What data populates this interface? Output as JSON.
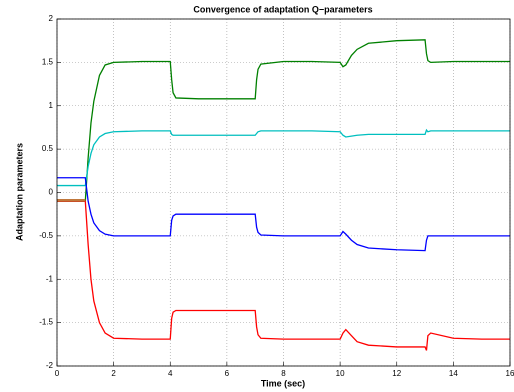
{
  "chart_data": {
    "type": "line",
    "title": "Convergence of adaptation Q−parameters",
    "x_label": "Time (sec)",
    "y_label": "Adaptation parameters",
    "x": [
      0,
      0.9,
      1.0,
      1.1,
      1.2,
      1.3,
      1.5,
      1.7,
      2,
      3,
      4,
      4.05,
      4.1,
      4.2,
      5,
      6,
      7,
      7.05,
      7.1,
      7.2,
      8,
      9,
      10,
      10.1,
      10.2,
      10.4,
      10.6,
      11,
      12,
      13,
      13.05,
      13.1,
      13.2,
      14,
      15,
      16
    ],
    "series": [
      {
        "name": "green",
        "color": "#008000",
        "values": [
          -0.1,
          -0.1,
          -0.1,
          0.4,
          0.8,
          1.05,
          1.35,
          1.47,
          1.5,
          1.51,
          1.51,
          1.3,
          1.15,
          1.09,
          1.08,
          1.08,
          1.08,
          1.3,
          1.42,
          1.48,
          1.51,
          1.51,
          1.5,
          1.45,
          1.47,
          1.58,
          1.65,
          1.72,
          1.75,
          1.76,
          1.6,
          1.52,
          1.5,
          1.51,
          1.51,
          1.51
        ]
      },
      {
        "name": "cyan",
        "color": "#00bfbf",
        "values": [
          0.08,
          0.08,
          0.08,
          0.3,
          0.45,
          0.55,
          0.64,
          0.68,
          0.7,
          0.71,
          0.71,
          0.67,
          0.66,
          0.66,
          0.66,
          0.66,
          0.66,
          0.68,
          0.7,
          0.71,
          0.71,
          0.71,
          0.7,
          0.66,
          0.64,
          0.65,
          0.66,
          0.67,
          0.67,
          0.67,
          0.72,
          0.7,
          0.71,
          0.71,
          0.71,
          0.71
        ]
      },
      {
        "name": "blue",
        "color": "#0000ff",
        "values": [
          0.17,
          0.17,
          0.17,
          -0.1,
          -0.25,
          -0.35,
          -0.44,
          -0.48,
          -0.5,
          -0.5,
          -0.5,
          -0.32,
          -0.27,
          -0.25,
          -0.25,
          -0.25,
          -0.25,
          -0.4,
          -0.46,
          -0.49,
          -0.5,
          -0.5,
          -0.5,
          -0.45,
          -0.48,
          -0.55,
          -0.6,
          -0.64,
          -0.66,
          -0.67,
          -0.55,
          -0.5,
          -0.5,
          -0.5,
          -0.5,
          -0.5
        ]
      },
      {
        "name": "red",
        "color": "#ff0000",
        "values": [
          -0.1,
          -0.1,
          -0.1,
          -0.6,
          -1.0,
          -1.25,
          -1.5,
          -1.62,
          -1.68,
          -1.69,
          -1.69,
          -1.45,
          -1.38,
          -1.36,
          -1.36,
          -1.36,
          -1.36,
          -1.55,
          -1.64,
          -1.68,
          -1.69,
          -1.69,
          -1.69,
          -1.62,
          -1.58,
          -1.65,
          -1.72,
          -1.76,
          -1.78,
          -1.78,
          -1.82,
          -1.65,
          -1.62,
          -1.68,
          -1.69,
          -1.69
        ]
      },
      {
        "name": "brown",
        "color": "#c0783c",
        "values": [
          -0.09,
          -0.09,
          -0.09,
          null,
          null,
          null,
          null,
          null,
          null,
          null,
          null,
          null,
          null,
          null,
          null,
          null,
          null,
          null,
          null,
          null,
          null,
          null,
          null,
          null,
          null,
          null,
          null,
          null,
          null,
          null,
          null,
          null,
          null,
          null,
          null,
          null
        ]
      }
    ],
    "xlim": [
      0,
      16
    ],
    "xticks": [
      0,
      2,
      4,
      6,
      8,
      10,
      12,
      14,
      16
    ],
    "ylim": [
      -2,
      2
    ],
    "yticks": [
      -2,
      -1.5,
      -1,
      -0.5,
      0,
      0.5,
      1,
      1.5,
      2
    ],
    "grid": true
  }
}
